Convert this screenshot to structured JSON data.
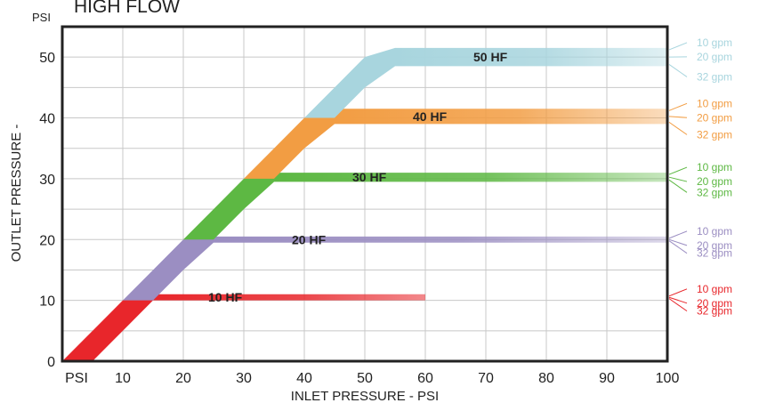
{
  "chart_data": {
    "type": "area",
    "title": "HIGH FLOW",
    "y_unit": "PSI",
    "xlabel": "INLET PRESSURE - PSI",
    "ylabel": "OUTLET PRESSURE -",
    "xlim": [
      0,
      100
    ],
    "ylim": [
      0,
      55
    ],
    "x_ticks": [
      10,
      20,
      30,
      40,
      50,
      60,
      70,
      80,
      90,
      100
    ],
    "x_first_tick_label": "PSI",
    "y_ticks": [
      0,
      10,
      20,
      30,
      40,
      50
    ],
    "grid": true,
    "series": [
      {
        "name": "10 HF",
        "color": "#e8262b",
        "x": [
          0,
          5,
          10,
          15,
          60
        ],
        "lower": [
          0,
          0,
          5,
          10,
          10
        ],
        "upper": [
          0,
          5,
          10,
          11,
          11
        ],
        "band_labels": [
          "10 gpm",
          "20 gpm",
          "32 gpm"
        ]
      },
      {
        "name": "20 HF",
        "color": "#9b8ec2",
        "x": [
          10,
          15,
          20,
          25,
          100
        ],
        "lower": [
          10,
          10,
          15,
          19.5,
          19.5
        ],
        "upper": [
          10,
          15,
          20,
          20.5,
          20.5
        ],
        "band_labels": [
          "10 gpm",
          "20 gpm",
          "32 gpm"
        ]
      },
      {
        "name": "30 HF",
        "color": "#5db843",
        "x": [
          20,
          25,
          30,
          35,
          100
        ],
        "lower": [
          20,
          20,
          25,
          29.5,
          29.5
        ],
        "upper": [
          20,
          25,
          30,
          31,
          31
        ],
        "band_labels": [
          "10 gpm",
          "20 gpm",
          "32 gpm"
        ]
      },
      {
        "name": "40 HF",
        "color": "#f29d43",
        "x": [
          30,
          35,
          40,
          45,
          100
        ],
        "lower": [
          30,
          30,
          35,
          39,
          39
        ],
        "upper": [
          30,
          35,
          40,
          41.5,
          41.5
        ],
        "band_labels": [
          "10 gpm",
          "20 gpm",
          "32 gpm"
        ]
      },
      {
        "name": "50 HF",
        "color": "#a8d5de",
        "x": [
          40,
          45,
          50,
          55,
          100
        ],
        "lower": [
          40,
          40,
          45,
          48.5,
          48.5
        ],
        "upper": [
          40,
          45,
          50,
          51.5,
          51.5
        ],
        "band_labels": [
          "10 gpm",
          "20 gpm",
          "32 gpm"
        ]
      }
    ]
  }
}
